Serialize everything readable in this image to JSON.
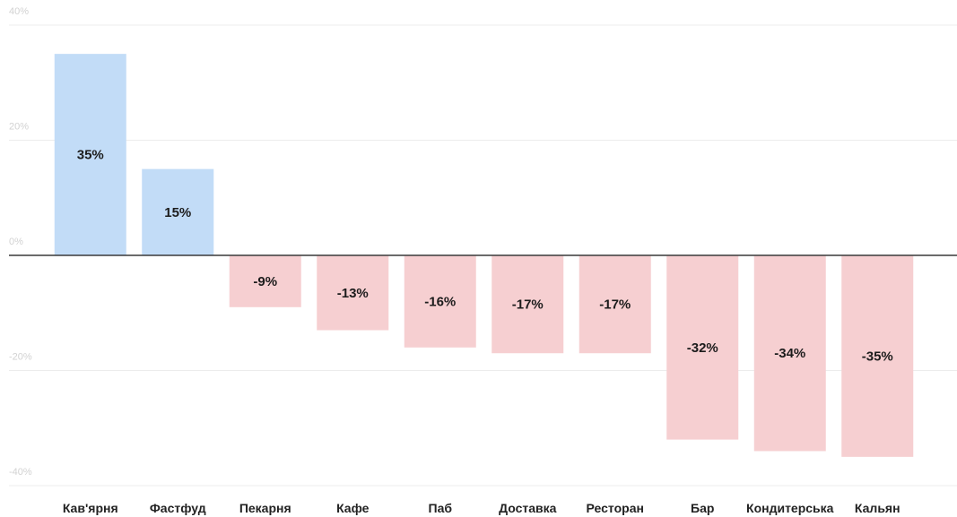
{
  "chart_data": {
    "type": "bar",
    "categories": [
      "Кав'ярня",
      "Фастфуд",
      "Пекарня",
      "Кафе",
      "Паб",
      "Доставка",
      "Ресторан",
      "Бар",
      "Кондитерська",
      "Кальян"
    ],
    "values": [
      35,
      15,
      -9,
      -13,
      -16,
      -17,
      -17,
      -32,
      -34,
      -35
    ],
    "data_labels": [
      "35%",
      "15%",
      "-9%",
      "-13%",
      "-16%",
      "-17%",
      "-17%",
      "-32%",
      "-34%",
      "-35%"
    ],
    "y_ticks": [
      {
        "value": 40,
        "label": "40%"
      },
      {
        "value": 20,
        "label": "20%"
      },
      {
        "value": 0,
        "label": "0%"
      },
      {
        "value": -20,
        "label": "-20%"
      },
      {
        "value": -40,
        "label": "-40%"
      }
    ],
    "ylim": [
      -40,
      40
    ],
    "grid": true,
    "legend": "none",
    "colors": {
      "positive": "#c2dcf7",
      "negative": "#f6cfd1",
      "zero_line": "#3a3a3a",
      "grid": "#ececec"
    }
  }
}
